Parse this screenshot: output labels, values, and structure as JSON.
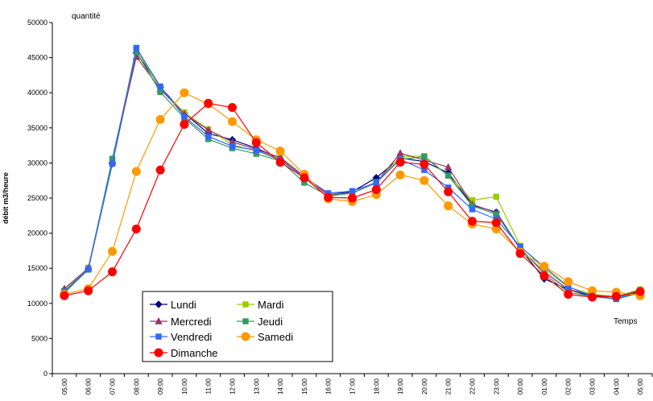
{
  "chart_data": {
    "type": "line",
    "title": "",
    "ylabel_top": "quantité",
    "ylabel": "débit m3/heure",
    "xlabel": "Temps",
    "ylim": [
      0,
      50000
    ],
    "yticks": [
      0,
      5000,
      10000,
      15000,
      20000,
      25000,
      30000,
      35000,
      40000,
      45000,
      50000
    ],
    "grid": false,
    "legend_position": "bottom-left",
    "categories": [
      "05:00",
      "06:00",
      "07:00",
      "08:00",
      "09:00",
      "10:00",
      "11:00",
      "12:00",
      "13:00",
      "14:00",
      "15:00",
      "16:00",
      "17:00",
      "18:00",
      "19:00",
      "20:00",
      "21:00",
      "22:00",
      "23:00",
      "00:00",
      "01:00",
      "02:00",
      "03:00",
      "04:00",
      "05:00"
    ],
    "series": [
      {
        "name": "Lundi",
        "color": "#000080",
        "marker": "diamond",
        "values": [
          11700,
          14900,
          29900,
          45700,
          40800,
          37100,
          34200,
          33300,
          32100,
          30600,
          28100,
          25500,
          25900,
          27900,
          30700,
          30200,
          28600,
          24000,
          23000,
          17800,
          13500,
          12000,
          11000,
          11000,
          11800
        ]
      },
      {
        "name": "Mardi",
        "color": "#99CC00",
        "marker": "square",
        "values": [
          11800,
          15100,
          30300,
          46200,
          40600,
          37200,
          34800,
          32600,
          31700,
          30700,
          28000,
          25500,
          25700,
          27200,
          30900,
          31000,
          28200,
          24700,
          25200,
          18200,
          14900,
          12300,
          11300,
          11000,
          12000
        ]
      },
      {
        "name": "Mercredi",
        "color": "#993366",
        "marker": "triangle",
        "values": [
          12100,
          15000,
          30400,
          45100,
          40500,
          37000,
          34700,
          33000,
          31900,
          30800,
          28100,
          25400,
          25700,
          27200,
          31400,
          30400,
          29400,
          24100,
          22900,
          17700,
          14500,
          12000,
          11200,
          10900,
          11700
        ]
      },
      {
        "name": "Jeudi",
        "color": "#339966",
        "marker": "square",
        "values": [
          11500,
          14800,
          30600,
          45800,
          40100,
          36400,
          33400,
          32100,
          31300,
          30300,
          27200,
          25300,
          25700,
          27300,
          30500,
          30900,
          28200,
          23900,
          22700,
          17900,
          14200,
          11600,
          11000,
          10600,
          11500
        ]
      },
      {
        "name": "Vendredi",
        "color": "#3366FF",
        "marker": "square",
        "values": [
          11700,
          14900,
          29900,
          46400,
          40900,
          36600,
          33800,
          32400,
          31800,
          30400,
          28000,
          25700,
          26000,
          27200,
          30500,
          29000,
          26500,
          23400,
          22000,
          18100,
          15200,
          12400,
          11000,
          10700,
          11600
        ]
      },
      {
        "name": "Samedi",
        "color": "#FF9900",
        "marker": "circle",
        "values": [
          11300,
          12100,
          17400,
          28800,
          36200,
          40000,
          38400,
          35900,
          33300,
          31700,
          28400,
          24900,
          24500,
          25500,
          28300,
          27500,
          23900,
          21300,
          20600,
          17300,
          15300,
          13100,
          11800,
          11600,
          11100
        ]
      },
      {
        "name": "Dimanche",
        "color": "#FF0000",
        "marker": "circle",
        "values": [
          11100,
          11800,
          14500,
          20600,
          29000,
          35500,
          38500,
          37900,
          32900,
          30100,
          27900,
          25100,
          25000,
          26200,
          30100,
          29800,
          25900,
          21700,
          21500,
          17100,
          13900,
          11300,
          10900,
          11000,
          11700
        ]
      }
    ]
  }
}
